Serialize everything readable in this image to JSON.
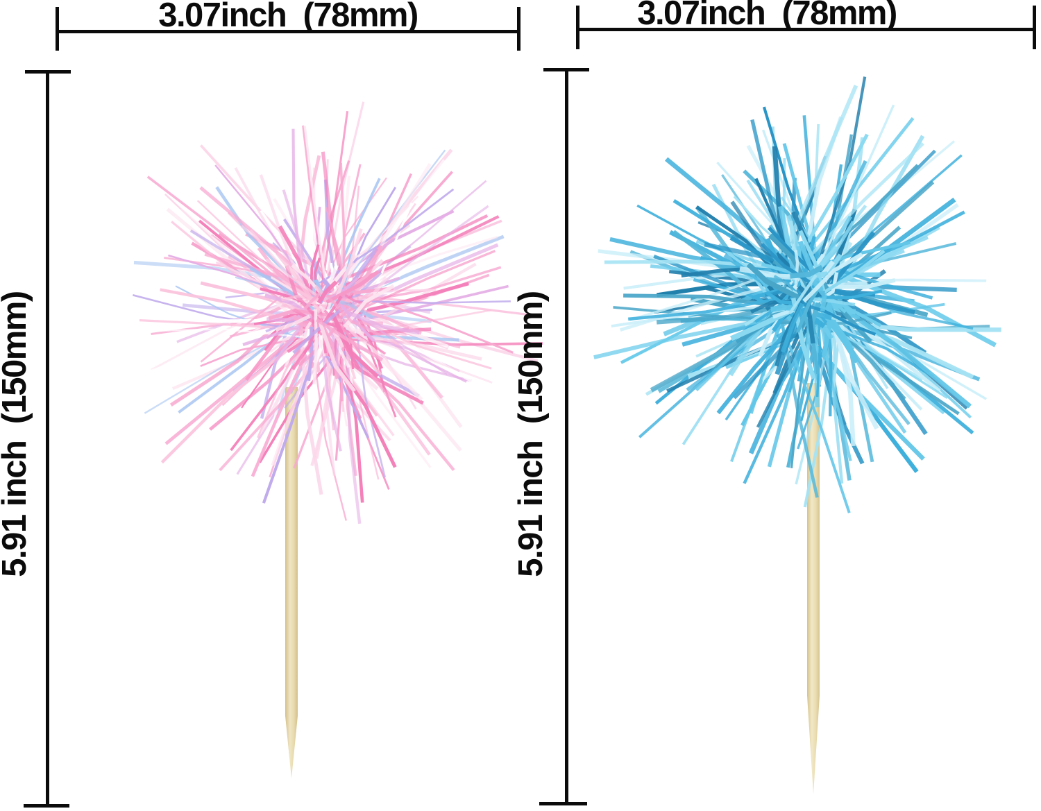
{
  "diagram": {
    "background": "#ffffff",
    "dimension_color": "#0b0b0b",
    "figures": [
      {
        "name": "iridescent-pink-tinsel-pom-pick",
        "width_label": "3.07inch  (78mm)",
        "height_label": "5.91 inch  (150mm)",
        "pom_palette": [
          "#f799c8",
          "#f8a9d1",
          "#fbc3dd",
          "#f47fb9",
          "#fde7f1",
          "#e5b0e6",
          "#bfaaec",
          "#a9c6f2",
          "#fbd7ea",
          "#f47fb9",
          "#f8a9d1",
          "#ffffff"
        ],
        "stick_palette": {
          "light": "#f0e6c3",
          "mid": "#e7d9ad",
          "dark": "#d3c08b"
        }
      },
      {
        "name": "blue-metallic-tinsel-pom-pick",
        "width_label": "3.07inch  (78mm)",
        "height_label": "5.91 inch  (150mm)",
        "pom_palette": [
          "#62c6e8",
          "#3fb0dc",
          "#8bd9f1",
          "#2a95c6",
          "#54b7da",
          "#a6e3f4",
          "#2280ad",
          "#49a6c8",
          "#6fcdec",
          "#3fb0dc",
          "#c9eef9"
        ],
        "stick_palette": {
          "light": "#f2e8c6",
          "mid": "#e9dcb0",
          "dark": "#d6c48e"
        }
      }
    ]
  }
}
